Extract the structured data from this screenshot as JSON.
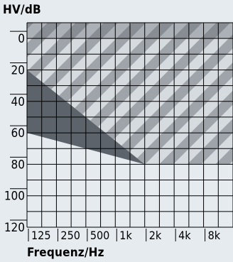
{
  "chart_data": {
    "type": "area",
    "ylabel": "HV/dB",
    "xlabel": "Frequenz/Hz",
    "y_ticks": [
      "0",
      "20",
      "40",
      "60",
      "80",
      "100",
      "120"
    ],
    "y_range": [
      -10,
      120
    ],
    "y_inverted": true,
    "x_ticks": [
      "125",
      "250",
      "500",
      "1k",
      "2k",
      "4k",
      "8k"
    ],
    "x_scale": "log2 (octaves)",
    "grid": true,
    "series": [
      {
        "fill": "dark-gray",
        "x": [
          "125",
          "2k"
        ],
        "y": [
          60,
          80
        ],
        "description_values": "region above line from 60 dB at 125 Hz to 80 dB at 2k Hz, flat 80 dB to 8k"
      },
      {
        "fill": "hatched",
        "x": [
          "125",
          "1k",
          "2k"
        ],
        "y": [
          20,
          60,
          80
        ],
        "description_values": "hatched region above diagonal from ~20 dB at 125 Hz to 80 dB at 2k Hz"
      }
    ],
    "colors": {
      "background": "#e6ebf0",
      "dark_fill": "#5c636b",
      "hatch_light": "#d6dbe0",
      "hatch_mid": "#9ea4aa",
      "grid": "#000000"
    }
  }
}
